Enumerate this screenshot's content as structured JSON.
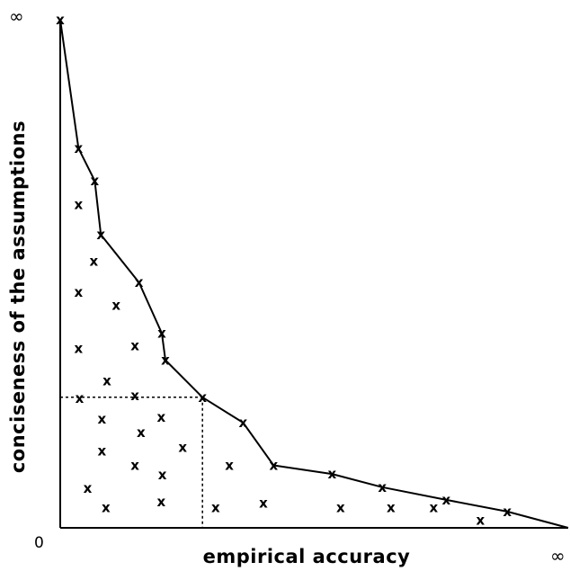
{
  "diagram": {
    "x_axis_label": "empirical accuracy",
    "y_axis_label": "conciseness of the assumptions",
    "origin_label": "0",
    "x_end_label": "∞",
    "y_end_label": "∞",
    "point_marker": "x",
    "colors": {
      "ink": "#000000",
      "background": "#ffffff"
    }
  },
  "chart_data": {
    "type": "scatter",
    "xlabel": "empirical accuracy",
    "ylabel": "conciseness of the assumptions",
    "frontier": [
      [
        0.0,
        1.0
      ],
      [
        0.036,
        0.747
      ],
      [
        0.068,
        0.683
      ],
      [
        0.08,
        0.577
      ],
      [
        0.155,
        0.483
      ],
      [
        0.2,
        0.383
      ],
      [
        0.207,
        0.33
      ],
      [
        0.28,
        0.257
      ],
      [
        0.36,
        0.207
      ],
      [
        0.42,
        0.123
      ],
      [
        0.535,
        0.106
      ],
      [
        0.634,
        0.08
      ],
      [
        0.76,
        0.055
      ],
      [
        0.88,
        0.032
      ],
      [
        1.0,
        0.0
      ]
    ],
    "interior_points": [
      [
        0.036,
        0.636
      ],
      [
        0.066,
        0.525
      ],
      [
        0.036,
        0.464
      ],
      [
        0.11,
        0.438
      ],
      [
        0.036,
        0.353
      ],
      [
        0.147,
        0.358
      ],
      [
        0.092,
        0.289
      ],
      [
        0.038,
        0.255
      ],
      [
        0.147,
        0.26
      ],
      [
        0.082,
        0.214
      ],
      [
        0.199,
        0.218
      ],
      [
        0.159,
        0.188
      ],
      [
        0.082,
        0.151
      ],
      [
        0.241,
        0.158
      ],
      [
        0.147,
        0.123
      ],
      [
        0.333,
        0.123
      ],
      [
        0.201,
        0.104
      ],
      [
        0.054,
        0.078
      ],
      [
        0.09,
        0.04
      ],
      [
        0.199,
        0.051
      ],
      [
        0.306,
        0.04
      ],
      [
        0.4,
        0.049
      ],
      [
        0.552,
        0.04
      ],
      [
        0.651,
        0.04
      ],
      [
        0.735,
        0.04
      ],
      [
        0.827,
        0.015
      ]
    ],
    "highlight": {
      "x": 0.28,
      "y": 0.257,
      "dashed_guides": true
    },
    "xlim": [
      0,
      1
    ],
    "ylim": [
      0,
      1
    ],
    "grid": false
  }
}
